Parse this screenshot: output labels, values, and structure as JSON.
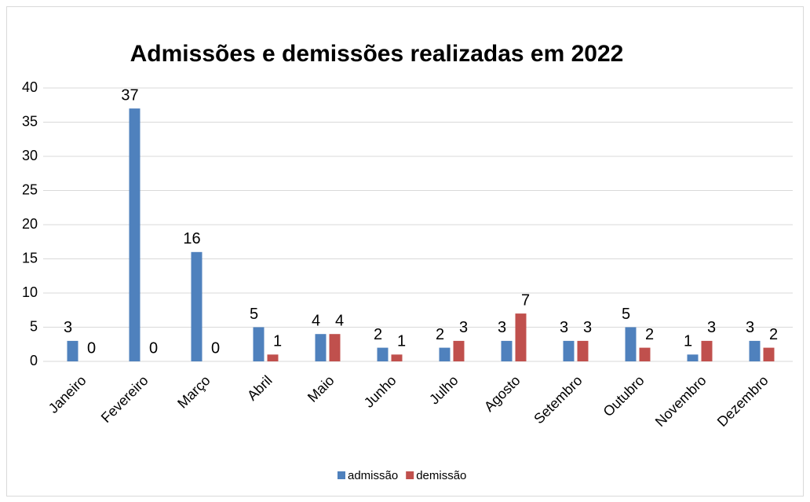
{
  "chart_data": {
    "type": "bar",
    "title": "Admissões e demissões realizadas em 2022",
    "categories": [
      "Janeiro",
      "Fevereiro",
      "Março",
      "Abril",
      "Maio",
      "Junho",
      "Julho",
      "Agosto",
      "Setembro",
      "Outubro",
      "Novembro",
      "Dezembro"
    ],
    "series": [
      {
        "name": "admissão",
        "color": "#4f81bd",
        "values": [
          3,
          37,
          16,
          5,
          4,
          2,
          2,
          3,
          3,
          5,
          1,
          3
        ]
      },
      {
        "name": "demissão",
        "color": "#c0504d",
        "values": [
          0,
          0,
          0,
          1,
          4,
          1,
          3,
          7,
          3,
          2,
          3,
          2
        ]
      }
    ],
    "ylim": [
      0,
      40
    ],
    "yticks": [
      0,
      5,
      10,
      15,
      20,
      25,
      30,
      35,
      40
    ],
    "grid": true,
    "legend": "bottom"
  }
}
